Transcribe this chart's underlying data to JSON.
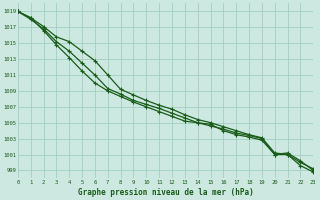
{
  "title": "Graphe pression niveau de la mer (hPa)",
  "bg_color": "#cce8e0",
  "grid_color": "#99ccbb",
  "line_color": "#1a5c1a",
  "x_min": 0,
  "x_max": 23,
  "y_min": 998,
  "y_max": 1020,
  "y_ticks": [
    999,
    1001,
    1003,
    1005,
    1007,
    1009,
    1011,
    1013,
    1015,
    1017,
    1019
  ],
  "series1": [
    1019,
    1018.2,
    1017.1,
    1015.8,
    1015.2,
    1014.0,
    1012.8,
    1011.0,
    1009.2,
    1008.5,
    1007.8,
    1007.2,
    1006.7,
    1006.0,
    1005.4,
    1005.0,
    1004.5,
    1004.0,
    1003.5,
    1003.1,
    1001.2,
    1001.0,
    999.6,
    998.8
  ],
  "series2": [
    1019,
    1018.0,
    1016.8,
    1015.2,
    1014.0,
    1012.5,
    1011.0,
    1009.3,
    1008.6,
    1007.8,
    1007.3,
    1006.8,
    1006.2,
    1005.6,
    1005.0,
    1004.6,
    1004.2,
    1003.7,
    1003.4,
    1003.0,
    1001.0,
    1001.2,
    1000.2,
    999.0
  ],
  "series3": [
    1019,
    1018.2,
    1016.6,
    1014.8,
    1013.2,
    1011.5,
    1010.0,
    1009.0,
    1008.3,
    1007.6,
    1007.0,
    1006.4,
    1005.8,
    1005.2,
    1005.0,
    1004.8,
    1004.0,
    1003.5,
    1003.2,
    1002.8,
    1001.0,
    1001.0,
    1000.0,
    999.2
  ]
}
